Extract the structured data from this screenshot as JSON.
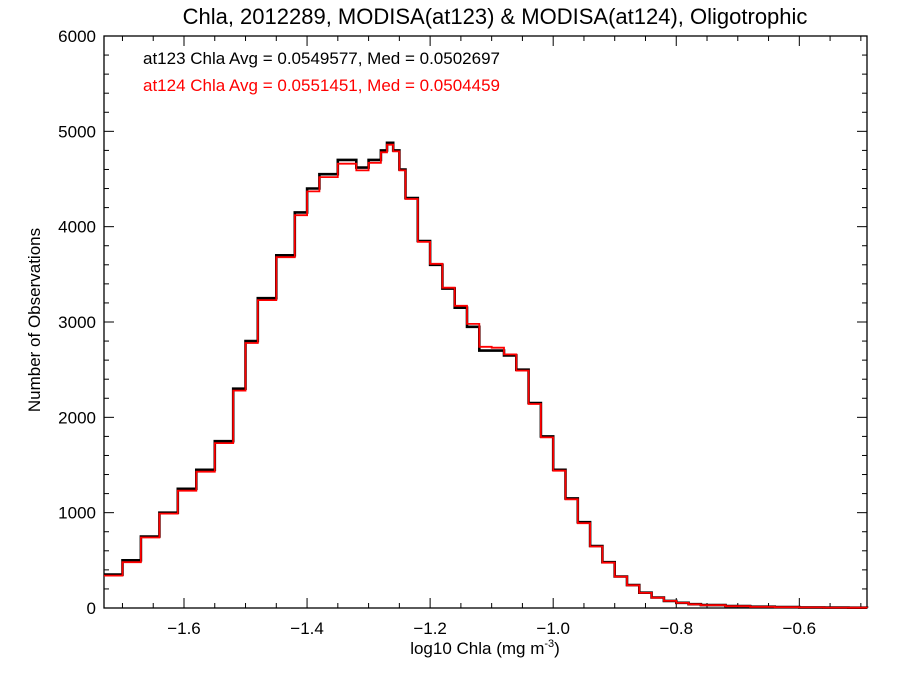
{
  "chart_data": {
    "type": "line",
    "title": "Chla, 2012289, MODISA(at123) & MODISA(at124), Oligotrophic",
    "xlabel": "log10 Chla (mg m",
    "xlabel_superscript": "-3",
    "xlabel_suffix": ")",
    "ylabel": "Number of Observations",
    "xlim": [
      -1.73,
      -0.49
    ],
    "ylim": [
      0,
      6000
    ],
    "xticks": [
      -1.6,
      -1.4,
      -1.2,
      -1.0,
      -0.8,
      -0.6
    ],
    "xtick_labels": [
      "−1.6",
      "−1.4",
      "−1.2",
      "−1.0",
      "−0.8",
      "−0.6"
    ],
    "yticks": [
      0,
      1000,
      2000,
      3000,
      4000,
      5000,
      6000
    ],
    "ytick_labels": [
      "0",
      "1000",
      "2000",
      "3000",
      "4000",
      "5000",
      "6000"
    ],
    "grid": false,
    "annotations": [
      {
        "text": "at123 Chla Avg = 0.0549577, Med = 0.0502697",
        "color": "#000000"
      },
      {
        "text": "at124 Chla Avg = 0.0551451, Med = 0.0504459",
        "color": "#ff0000"
      }
    ],
    "series": [
      {
        "color": "#000000",
        "x": [
          -1.73,
          -1.7,
          -1.67,
          -1.64,
          -1.61,
          -1.58,
          -1.55,
          -1.52,
          -1.5,
          -1.48,
          -1.45,
          -1.42,
          -1.4,
          -1.38,
          -1.35,
          -1.32,
          -1.3,
          -1.28,
          -1.27,
          -1.26,
          -1.25,
          -1.24,
          -1.22,
          -1.2,
          -1.18,
          -1.16,
          -1.14,
          -1.12,
          -1.1,
          -1.08,
          -1.06,
          -1.04,
          -1.02,
          -1.0,
          -0.98,
          -0.96,
          -0.94,
          -0.92,
          -0.9,
          -0.88,
          -0.86,
          -0.84,
          -0.82,
          -0.8,
          -0.78,
          -0.76,
          -0.72,
          -0.68,
          -0.64,
          -0.6,
          -0.56,
          -0.52,
          -0.49
        ],
        "y": [
          350,
          500,
          750,
          1000,
          1250,
          1450,
          1750,
          2300,
          2800,
          3250,
          3700,
          4150,
          4400,
          4550,
          4700,
          4620,
          4700,
          4800,
          4880,
          4800,
          4600,
          4300,
          3850,
          3600,
          3350,
          3150,
          2950,
          2700,
          2700,
          2650,
          2500,
          2150,
          1800,
          1450,
          1150,
          900,
          650,
          480,
          330,
          240,
          160,
          110,
          75,
          55,
          40,
          30,
          20,
          14,
          9,
          6,
          4,
          3,
          2
        ]
      },
      {
        "color": "#ff0000",
        "x": [
          -1.73,
          -1.7,
          -1.67,
          -1.64,
          -1.61,
          -1.58,
          -1.55,
          -1.52,
          -1.5,
          -1.48,
          -1.45,
          -1.42,
          -1.4,
          -1.38,
          -1.35,
          -1.32,
          -1.3,
          -1.28,
          -1.27,
          -1.26,
          -1.25,
          -1.24,
          -1.22,
          -1.2,
          -1.18,
          -1.16,
          -1.14,
          -1.12,
          -1.1,
          -1.08,
          -1.06,
          -1.04,
          -1.02,
          -1.0,
          -0.98,
          -0.96,
          -0.94,
          -0.92,
          -0.9,
          -0.88,
          -0.86,
          -0.84,
          -0.82,
          -0.8,
          -0.78,
          -0.76,
          -0.72,
          -0.68,
          -0.64,
          -0.6,
          -0.56,
          -0.52,
          -0.49
        ],
        "y": [
          340,
          480,
          740,
          990,
          1230,
          1430,
          1730,
          2280,
          2780,
          3230,
          3680,
          4120,
          4370,
          4520,
          4660,
          4590,
          4670,
          4780,
          4860,
          4790,
          4590,
          4290,
          3840,
          3610,
          3360,
          3170,
          2980,
          2740,
          2730,
          2660,
          2490,
          2140,
          1790,
          1440,
          1140,
          890,
          645,
          475,
          328,
          238,
          158,
          108,
          74,
          54,
          39,
          29,
          19,
          13,
          8,
          6,
          4,
          3,
          2
        ]
      }
    ]
  }
}
